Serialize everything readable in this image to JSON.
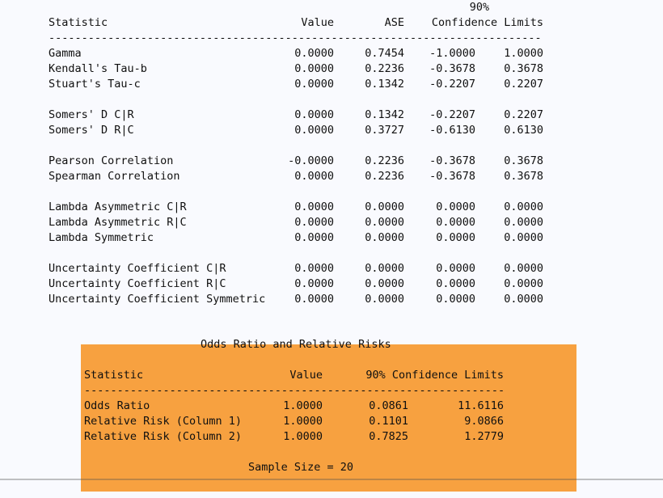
{
  "colors": {
    "highlight_orange": "#f7a140",
    "page_background": "#f9fafe",
    "text": "#101010"
  },
  "stats_table": {
    "header_90": "90%",
    "headers": {
      "statistic": "Statistic",
      "value": "Value",
      "ase": "ASE",
      "confidence_limits": "Confidence Limits"
    },
    "divider": "---------------------------------------------------------------------------",
    "groups": [
      [
        {
          "stat": "Gamma",
          "value": "0.0000",
          "ase": "0.7454",
          "lcl": "-1.0000",
          "ucl": "1.0000"
        },
        {
          "stat": "Kendall's Tau-b",
          "value": "0.0000",
          "ase": "0.2236",
          "lcl": "-0.3678",
          "ucl": "0.3678"
        },
        {
          "stat": "Stuart's Tau-c",
          "value": "0.0000",
          "ase": "0.1342",
          "lcl": "-0.2207",
          "ucl": "0.2207"
        }
      ],
      [
        {
          "stat": "Somers' D C|R",
          "value": "0.0000",
          "ase": "0.1342",
          "lcl": "-0.2207",
          "ucl": "0.2207"
        },
        {
          "stat": "Somers' D R|C",
          "value": "0.0000",
          "ase": "0.3727",
          "lcl": "-0.6130",
          "ucl": "0.6130"
        }
      ],
      [
        {
          "stat": "Pearson Correlation",
          "value": "-0.0000",
          "ase": "0.2236",
          "lcl": "-0.3678",
          "ucl": "0.3678"
        },
        {
          "stat": "Spearman Correlation",
          "value": "0.0000",
          "ase": "0.2236",
          "lcl": "-0.3678",
          "ucl": "0.3678"
        }
      ],
      [
        {
          "stat": "Lambda Asymmetric C|R",
          "value": "0.0000",
          "ase": "0.0000",
          "lcl": "0.0000",
          "ucl": "0.0000"
        },
        {
          "stat": "Lambda Asymmetric R|C",
          "value": "0.0000",
          "ase": "0.0000",
          "lcl": "0.0000",
          "ucl": "0.0000"
        },
        {
          "stat": "Lambda Symmetric",
          "value": "0.0000",
          "ase": "0.0000",
          "lcl": "0.0000",
          "ucl": "0.0000"
        }
      ],
      [
        {
          "stat": "Uncertainty Coefficient C|R",
          "value": "0.0000",
          "ase": "0.0000",
          "lcl": "0.0000",
          "ucl": "0.0000"
        },
        {
          "stat": "Uncertainty Coefficient R|C",
          "value": "0.0000",
          "ase": "0.0000",
          "lcl": "0.0000",
          "ucl": "0.0000"
        },
        {
          "stat": "Uncertainty Coefficient Symmetric",
          "value": "0.0000",
          "ase": "0.0000",
          "lcl": "0.0000",
          "ucl": "0.0000"
        }
      ]
    ]
  },
  "odds_section": {
    "title": "Odds Ratio and Relative Risks",
    "headers": {
      "statistic": "Statistic",
      "value": "Value",
      "confidence_limits": "90% Confidence Limits"
    },
    "divider": "------------------------------------------------------------------",
    "rows": [
      {
        "stat": "Odds Ratio",
        "value": "1.0000",
        "lcl": "0.0861",
        "ucl": "11.6116"
      },
      {
        "stat": "Relative Risk (Column 1)",
        "value": "1.0000",
        "lcl": "0.1101",
        "ucl": "9.0866"
      },
      {
        "stat": "Relative Risk (Column 2)",
        "value": "1.0000",
        "lcl": "0.7825",
        "ucl": "1.2779"
      }
    ],
    "sample_size": "Sample Size = 20"
  }
}
